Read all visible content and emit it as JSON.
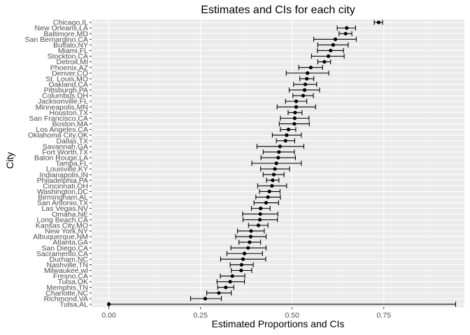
{
  "chart_data": {
    "type": "scatter",
    "title": "Estimates and CIs for each city",
    "xlabel": "Estimated Proportions and CIs",
    "ylabel": "City",
    "xlim": [
      -0.047,
      0.97
    ],
    "x_ticks": [
      0.0,
      0.25,
      0.5,
      0.75
    ],
    "x_tick_labels": [
      "0.00",
      "0.25",
      "0.50",
      "0.75"
    ],
    "grid": true,
    "cities": [
      "Chicago,IL",
      "New Orleans,LA",
      "Baltimore,MD",
      "San Bernardino,CA",
      "Buffalo,NY",
      "Miami,FL",
      "Stockton,CA",
      "Detroit,MI",
      "Phoenix,AZ",
      "Denver,CO",
      "St. Louis,MO",
      "Oakland,CA",
      "Pittsburgh,PA",
      "Columbus,OH",
      "Jacksonville,FL",
      "Minneapolis,MN",
      "Houston,TX",
      "San Francisco,CA",
      "Boston,MA",
      "Los Angeles,CA",
      "Oklahoma City,OK",
      "Dallas,TX",
      "Savannah,GA",
      "Fort Worth,TX",
      "Baton Rouge,LA",
      "Tampa,FL",
      "Louisville,KY",
      "Indianapolis,IN",
      "Philadelphia,PA",
      "Cincinnati,OH",
      "Washington,DC",
      "Birmingham,AL",
      "San Antonio,TX",
      "Las Vegas,NV",
      "Omaha,NE",
      "Long Beach,CA",
      "Kansas City,MO",
      "New York,NY",
      "Albuquerque,NM",
      "Atlanta,GA",
      "San Diego,CA",
      "Sacramento,CA",
      "Durham,NC",
      "Nashville,TN",
      "Milwaukee,wI",
      "Fresno,CA",
      "Tulsa,OK",
      "Memphis,TN",
      "Charlotte,NC",
      "Richmond,VA",
      "Tulsa,AL"
    ],
    "estimates": [
      0.736,
      0.649,
      0.646,
      0.618,
      0.612,
      0.605,
      0.599,
      0.588,
      0.551,
      0.542,
      0.54,
      0.536,
      0.534,
      0.53,
      0.511,
      0.511,
      0.508,
      0.507,
      0.506,
      0.49,
      0.485,
      0.482,
      0.467,
      0.464,
      0.462,
      0.457,
      0.453,
      0.45,
      0.447,
      0.445,
      0.438,
      0.434,
      0.429,
      0.414,
      0.413,
      0.412,
      0.408,
      0.388,
      0.387,
      0.384,
      0.38,
      0.37,
      0.366,
      0.362,
      0.361,
      0.337,
      0.331,
      0.319,
      0.3,
      0.263,
      0.0
    ],
    "ci_lower": [
      0.724,
      0.623,
      0.628,
      0.559,
      0.57,
      0.569,
      0.553,
      0.57,
      0.518,
      0.484,
      0.521,
      0.504,
      0.492,
      0.502,
      0.482,
      0.459,
      0.489,
      0.468,
      0.465,
      0.468,
      0.446,
      0.457,
      0.404,
      0.421,
      0.415,
      0.39,
      0.414,
      0.421,
      0.43,
      0.406,
      0.411,
      0.401,
      0.396,
      0.389,
      0.365,
      0.366,
      0.381,
      0.351,
      0.346,
      0.355,
      0.333,
      0.322,
      0.305,
      0.331,
      0.334,
      0.304,
      0.295,
      0.297,
      0.267,
      0.223,
      0.0
    ],
    "ci_upper": [
      0.747,
      0.673,
      0.663,
      0.675,
      0.653,
      0.64,
      0.642,
      0.605,
      0.583,
      0.6,
      0.559,
      0.567,
      0.575,
      0.558,
      0.54,
      0.564,
      0.527,
      0.546,
      0.547,
      0.51,
      0.525,
      0.507,
      0.532,
      0.506,
      0.509,
      0.525,
      0.493,
      0.478,
      0.464,
      0.485,
      0.467,
      0.468,
      0.463,
      0.44,
      0.461,
      0.46,
      0.434,
      0.424,
      0.429,
      0.414,
      0.429,
      0.419,
      0.428,
      0.394,
      0.39,
      0.371,
      0.37,
      0.341,
      0.334,
      0.307,
      0.946
    ]
  }
}
